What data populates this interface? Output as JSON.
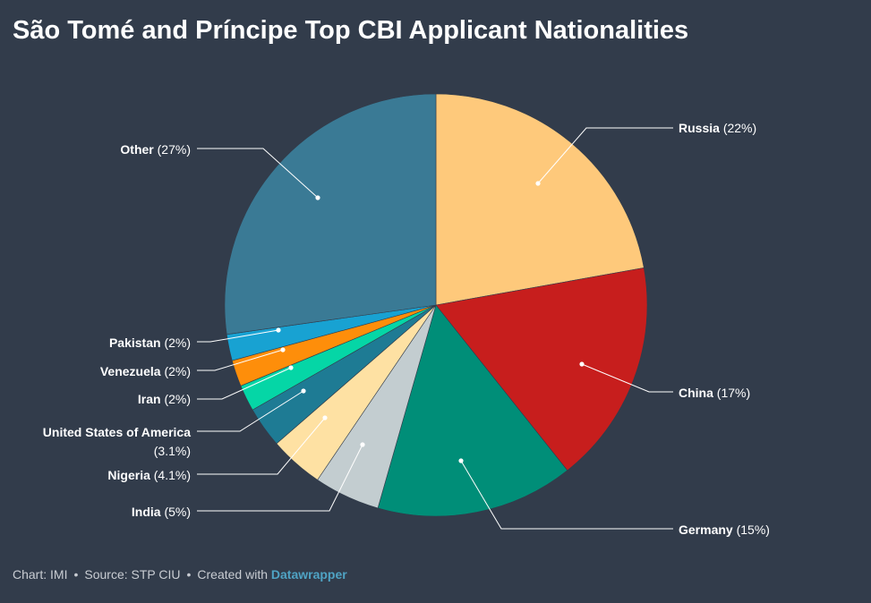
{
  "title": "São Tomé and Príncipe Top CBI Applicant Nationalities",
  "footer": {
    "chart": "Chart: IMI",
    "source": "Source: STP CIU",
    "created": "Created with",
    "tool": "Datawrapper",
    "separator": "•"
  },
  "chart_data": {
    "type": "pie",
    "slices": [
      {
        "name": "Russia",
        "label": "(22%)",
        "value": 22,
        "color": "#fec97b"
      },
      {
        "name": "China",
        "label": "(17%)",
        "value": 17,
        "color": "#c71e1d"
      },
      {
        "name": "Germany",
        "label": "(15%)",
        "value": 15,
        "color": "#008e78"
      },
      {
        "name": "India",
        "label": "(5%)",
        "value": 5,
        "color": "#c3cdd0"
      },
      {
        "name": "Nigeria",
        "label": "(4.1%)",
        "value": 4.1,
        "color": "#fee1a3"
      },
      {
        "name": "United States of America",
        "label": "(3.1%)",
        "value": 3.1,
        "color": "#1e7b94"
      },
      {
        "name": "Iran",
        "label": "(2%)",
        "value": 2,
        "color": "#05d6a6"
      },
      {
        "name": "Venezuela",
        "label": "(2%)",
        "value": 2,
        "color": "#fe8e0a"
      },
      {
        "name": "Pakistan",
        "label": "(2%)",
        "value": 2,
        "color": "#18a2d2"
      },
      {
        "name": "Other",
        "label": "(27%)",
        "value": 27,
        "color": "#3a7a95"
      }
    ]
  }
}
